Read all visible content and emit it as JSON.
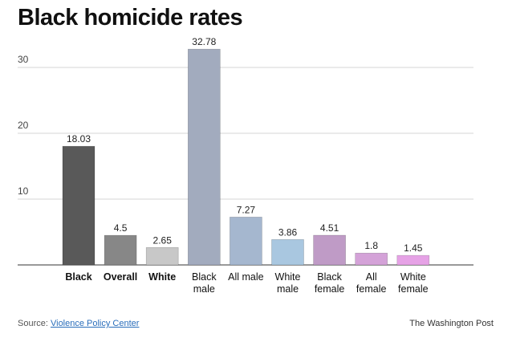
{
  "title": "Black homicide rates",
  "source_prefix": "Source:",
  "source_link": "Violence Policy Center",
  "credit": "The Washington Post",
  "chart_data": {
    "type": "bar",
    "title": "Black homicide rates",
    "xlabel": "",
    "ylabel": "",
    "ylim": [
      0,
      34
    ],
    "yticks": [
      10,
      20,
      30
    ],
    "grid": true,
    "categories": [
      {
        "lines": [
          "Black"
        ],
        "bold": true
      },
      {
        "lines": [
          "Overall"
        ],
        "bold": true
      },
      {
        "lines": [
          "White"
        ],
        "bold": true
      },
      {
        "lines": [
          "Black",
          "male"
        ],
        "bold": false
      },
      {
        "lines": [
          "All male"
        ],
        "bold": false
      },
      {
        "lines": [
          "White",
          "male"
        ],
        "bold": false
      },
      {
        "lines": [
          "Black",
          "female"
        ],
        "bold": false
      },
      {
        "lines": [
          "All",
          "female"
        ],
        "bold": false
      },
      {
        "lines": [
          "White",
          "female"
        ],
        "bold": false
      }
    ],
    "values": [
      18.03,
      4.5,
      2.65,
      32.78,
      7.27,
      3.86,
      4.51,
      1.8,
      1.45
    ],
    "value_labels": [
      "18.03",
      "4.5",
      "2.65",
      "32.78",
      "7.27",
      "3.86",
      "4.51",
      "1.8",
      "1.45"
    ],
    "colors": [
      "#595959",
      "#878787",
      "#c8c8c8",
      "#a2abbe",
      "#a5b7cf",
      "#a9c7e0",
      "#bf9bc6",
      "#d4a2d8",
      "#e6a2e6"
    ]
  }
}
